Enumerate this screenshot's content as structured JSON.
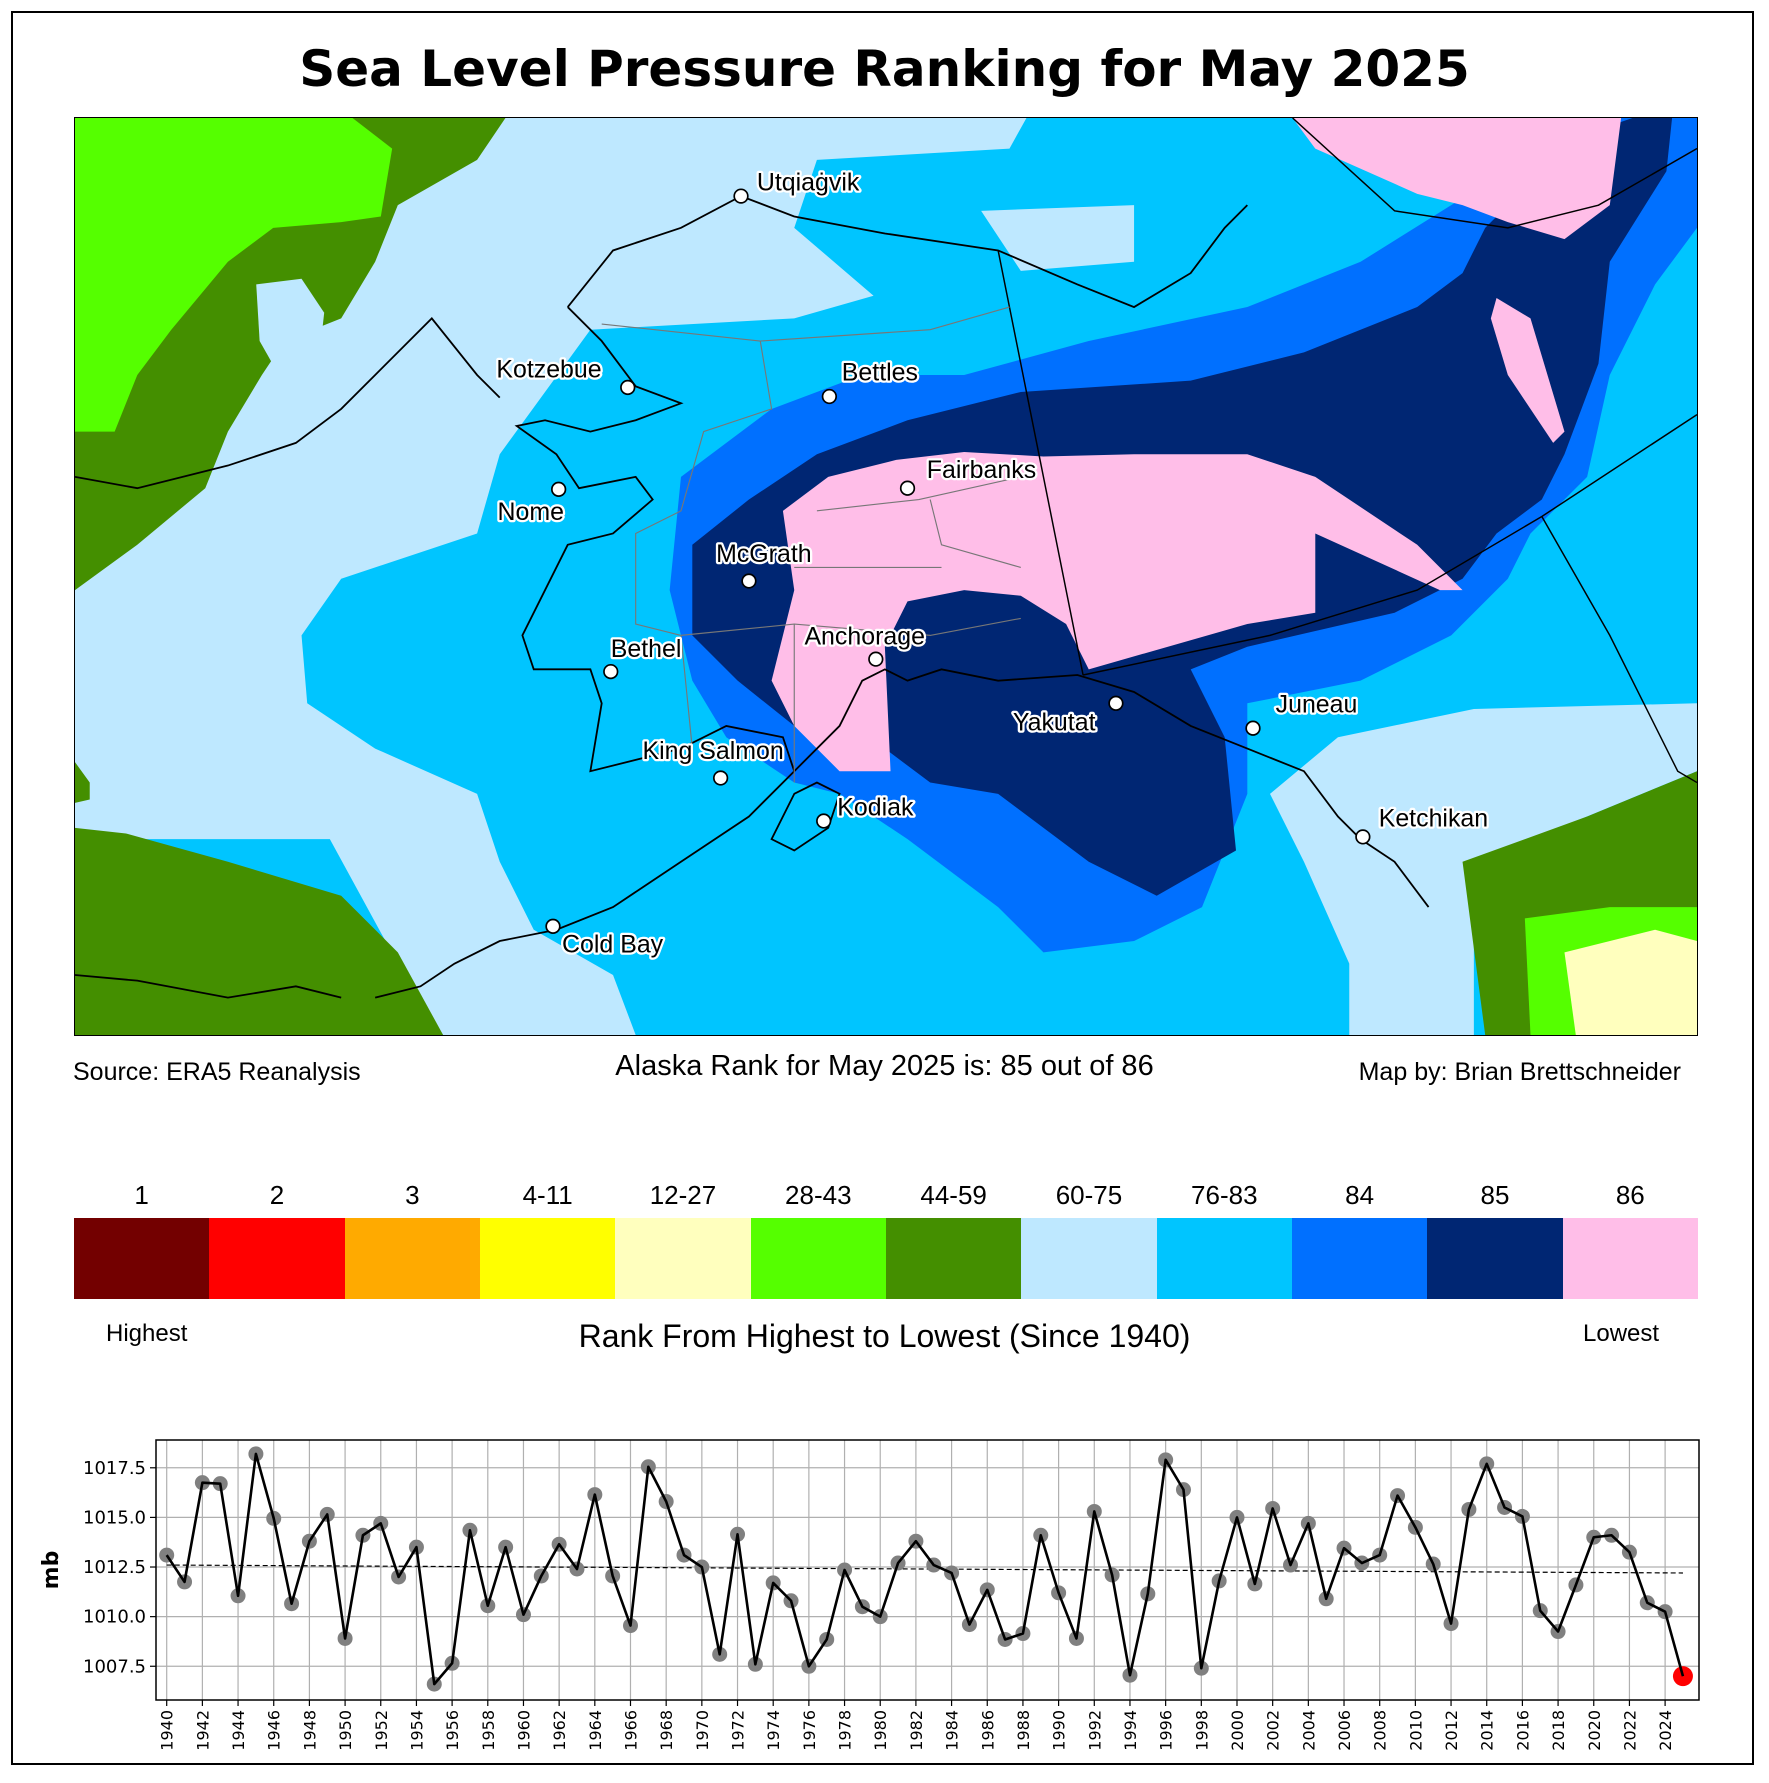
{
  "title": "Sea Level Pressure Ranking for May 2025",
  "source": "Source: ERA5 Reanalysis",
  "rank_statement": "Alaska Rank for May 2025 is: 85 out of 86",
  "credit": "Map by: Brian Brettschneider",
  "cities": [
    {
      "name": "Utqiaġvik"
    },
    {
      "name": "Kotzebue"
    },
    {
      "name": "Bettles"
    },
    {
      "name": "Nome"
    },
    {
      "name": "Fairbanks"
    },
    {
      "name": "McGrath"
    },
    {
      "name": "Bethel"
    },
    {
      "name": "Anchorage"
    },
    {
      "name": "King Salmon"
    },
    {
      "name": "Kodiak"
    },
    {
      "name": "Cold Bay"
    },
    {
      "name": "Yakutat"
    },
    {
      "name": "Juneau"
    },
    {
      "name": "Ketchikan"
    }
  ],
  "legend": {
    "categories": [
      {
        "label": "1",
        "color": "#730000"
      },
      {
        "label": "2",
        "color": "#ff0000"
      },
      {
        "label": "3",
        "color": "#ffaa00"
      },
      {
        "label": "4-11",
        "color": "#ffff00"
      },
      {
        "label": "12-27",
        "color": "#ffffbe"
      },
      {
        "label": "28-43",
        "color": "#55ff00"
      },
      {
        "label": "44-59",
        "color": "#448f00"
      },
      {
        "label": "60-75",
        "color": "#bee8ff"
      },
      {
        "label": "76-83",
        "color": "#00c5ff"
      },
      {
        "label": "84",
        "color": "#0070ff"
      },
      {
        "label": "85",
        "color": "#002673"
      },
      {
        "label": "86",
        "color": "#ffbee8"
      }
    ],
    "highest": "Highest",
    "lowest": "Lowest",
    "title": "Rank From Highest to Lowest (Since 1940)"
  },
  "chart_data": {
    "type": "line",
    "title": "",
    "xlabel": "",
    "ylabel": "mb",
    "xlim": [
      1939.4,
      2025.9
    ],
    "ylim": [
      1005.8,
      1018.9
    ],
    "grid": true,
    "x_ticks": [
      1940,
      1942,
      1944,
      1946,
      1948,
      1950,
      1952,
      1954,
      1956,
      1958,
      1960,
      1962,
      1964,
      1966,
      1968,
      1970,
      1972,
      1974,
      1976,
      1978,
      1980,
      1982,
      1984,
      1986,
      1988,
      1990,
      1992,
      1994,
      1996,
      1998,
      2000,
      2002,
      2004,
      2006,
      2008,
      2010,
      2012,
      2014,
      2016,
      2018,
      2020,
      2022,
      2024
    ],
    "y_ticks": [
      1007.5,
      1010.0,
      1012.5,
      1015.0,
      1017.5
    ],
    "y_tick_labels": [
      "1007.5",
      "1010.0",
      "1012.5",
      "1015.0",
      "1017.5"
    ],
    "x_start": 1940,
    "values": [
      1013.1,
      1011.75,
      1016.75,
      1016.7,
      1011.05,
      1018.2,
      1014.95,
      1010.65,
      1013.8,
      1015.15,
      1008.9,
      1014.1,
      1014.7,
      1012.0,
      1013.5,
      1006.6,
      1007.65,
      1014.35,
      1010.55,
      1013.5,
      1010.1,
      1012.05,
      1013.65,
      1012.4,
      1016.15,
      1012.05,
      1009.55,
      1017.55,
      1015.8,
      1013.1,
      1012.5,
      1008.1,
      1014.15,
      1007.6,
      1011.7,
      1010.8,
      1007.5,
      1008.85,
      1012.35,
      1010.5,
      1010.0,
      1012.7,
      1013.8,
      1012.6,
      1012.2,
      1009.6,
      1011.35,
      1008.85,
      1009.15,
      1014.1,
      1011.2,
      1008.9,
      1015.3,
      1012.1,
      1007.05,
      1011.15,
      1017.9,
      1016.4,
      1007.4,
      1011.8,
      1015.0,
      1011.65,
      1015.45,
      1012.6,
      1014.7,
      1010.9,
      1013.45,
      1012.7,
      1013.1,
      1016.1,
      1014.5,
      1012.65,
      1009.65,
      1015.4,
      1017.7,
      1015.5,
      1015.05,
      1010.3,
      1009.25,
      1011.6,
      1014.0,
      1014.1,
      1013.25,
      1010.7,
      1010.25,
      1007.0
    ],
    "highlight_year": 2025,
    "trend": {
      "x": [
        1940,
        2025
      ],
      "y": [
        1012.6,
        1012.2
      ]
    },
    "colors": {
      "line": "#000000",
      "marker": "#808080",
      "highlight": "#ff0000"
    }
  }
}
